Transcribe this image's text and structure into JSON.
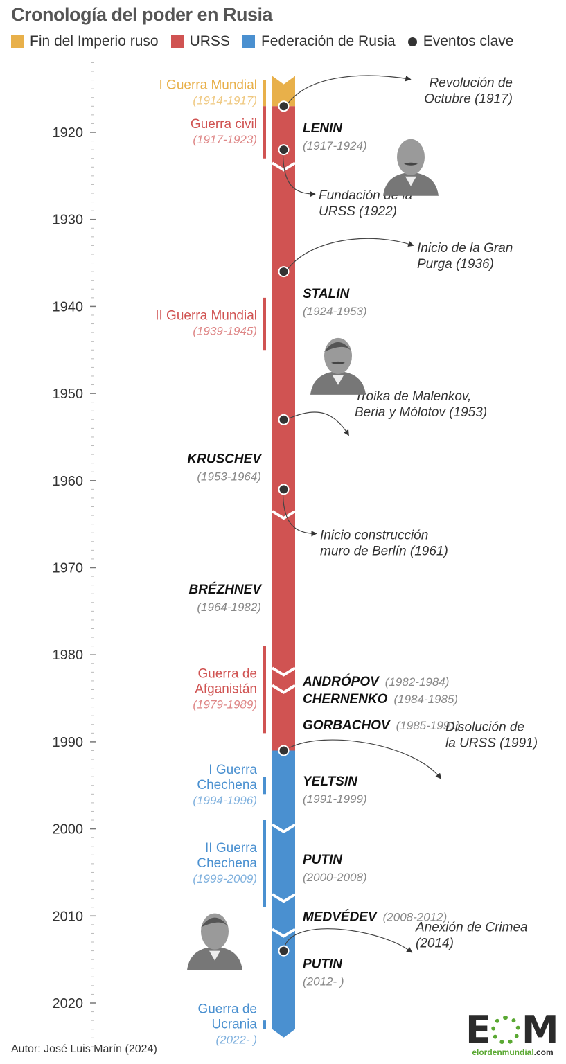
{
  "title": "Cronología del poder en Rusia",
  "legend": [
    {
      "label": "Fin del Imperio ruso",
      "color": "#e8b04a"
    },
    {
      "label": "URSS",
      "color": "#d05352"
    },
    {
      "label": "Federación de Rusia",
      "color": "#4a90d0"
    },
    {
      "label": "Eventos clave",
      "color": "#333333"
    }
  ],
  "axis": {
    "start": 1912,
    "end": 2025,
    "ticks": [
      1920,
      1930,
      1940,
      1950,
      1960,
      1970,
      1980,
      1990,
      2000,
      2010,
      2020
    ]
  },
  "eras": [
    {
      "start": 1914,
      "end": 1917,
      "color": "#e8b04a"
    },
    {
      "start": 1917,
      "end": 1991,
      "color": "#d05352"
    },
    {
      "start": 1991,
      "end": 2023,
      "color": "#4a90d0"
    }
  ],
  "separators": [
    1924,
    1964,
    1982,
    1984,
    2000,
    2008,
    2012
  ],
  "leaders": [
    {
      "name": "LENIN",
      "years": "(1917-1924)",
      "side": "right",
      "layout": "stacked",
      "label_year": 1920
    },
    {
      "name": "STALIN",
      "years": "(1924-1953)",
      "side": "right",
      "layout": "stacked",
      "label_year": 1939
    },
    {
      "name": "KRUSCHEV",
      "years": "(1953-1964)",
      "side": "left",
      "layout": "stacked",
      "label_year": 1958
    },
    {
      "name": "BRÉZHNEV",
      "years": "(1964-1982)",
      "side": "left",
      "layout": "stacked",
      "label_year": 1973
    },
    {
      "name": "ANDRÓPOV",
      "years": "(1982-1984)",
      "side": "right",
      "layout": "inline",
      "label_year": 1983
    },
    {
      "name": "CHERNENKO",
      "years": "(1984-1985)",
      "side": "right",
      "layout": "inline",
      "label_year": 1985
    },
    {
      "name": "GORBACHOV",
      "years": "(1985-1991)",
      "side": "right",
      "layout": "inline",
      "label_year": 1988
    },
    {
      "name": "YELTSIN",
      "years": "(1991-1999)",
      "side": "right",
      "layout": "stacked",
      "label_year": 1995
    },
    {
      "name": "PUTIN",
      "years": "(2000-2008)",
      "side": "right",
      "layout": "stacked",
      "label_year": 2004
    },
    {
      "name": "MEDVÉDEV",
      "years": "(2008-2012)",
      "side": "right",
      "layout": "inline",
      "label_year": 2010
    },
    {
      "name": "PUTIN",
      "years": "(2012- )",
      "side": "right",
      "layout": "stacked",
      "label_year": 2016
    }
  ],
  "wars": [
    {
      "lines": [
        "I Guerra Mundial"
      ],
      "years": "(1914-1917)",
      "start": 1914,
      "end": 1917,
      "color": "#e8b04a"
    },
    {
      "lines": [
        "Guerra civil"
      ],
      "years": "(1917-1923)",
      "start": 1917,
      "end": 1923,
      "color": "#d05352"
    },
    {
      "lines": [
        "II Guerra Mundial"
      ],
      "years": "(1939-1945)",
      "start": 1939,
      "end": 1945,
      "color": "#d05352"
    },
    {
      "lines": [
        "Guerra de",
        "Afganistán"
      ],
      "years": "(1979-1989)",
      "start": 1979,
      "end": 1989,
      "color": "#d05352"
    },
    {
      "lines": [
        "I Guerra",
        "Chechena"
      ],
      "years": "(1994-1996)",
      "start": 1994,
      "end": 1996,
      "color": "#4a90d0"
    },
    {
      "lines": [
        "II Guerra",
        "Chechena"
      ],
      "years": "(1999-2009)",
      "start": 1999,
      "end": 2009,
      "color": "#4a90d0"
    },
    {
      "lines": [
        "Guerra de",
        "Ucrania"
      ],
      "years": "(2022- )",
      "start": 2022,
      "end": 2023,
      "color": "#4a90d0"
    }
  ],
  "events": [
    {
      "year": 1917,
      "lines": [
        "Revolución de",
        "Octubre (1917)"
      ],
      "direction": "up",
      "align": "right"
    },
    {
      "year": 1922,
      "lines": [
        "Fundación de la",
        "URSS (1922)"
      ],
      "direction": "down",
      "align": "left"
    },
    {
      "year": 1936,
      "lines": [
        "Inicio de la Gran",
        "Purga (1936)"
      ],
      "direction": "up",
      "align": "left"
    },
    {
      "year": 1953,
      "lines": [
        "Troika de Malenkov,",
        "Beria y Mólotov (1953)"
      ],
      "direction": "up",
      "align": "left"
    },
    {
      "year": 1961,
      "lines": [
        "Inicio construcción",
        "muro de Berlín (1961)"
      ],
      "direction": "down",
      "align": "left"
    },
    {
      "year": 1991,
      "lines": [
        "Disolución de",
        "la URSS (1991)"
      ],
      "direction": "up",
      "align": "left"
    },
    {
      "year": 2014,
      "lines": [
        "Anexión de Crimea",
        "(2014)"
      ],
      "direction": "up",
      "align": "left"
    }
  ],
  "portraits": [
    {
      "name": "lenin-portrait",
      "year": 1923
    },
    {
      "name": "stalin-portrait",
      "year": 1946
    },
    {
      "name": "putin-portrait",
      "year": 2014
    }
  ],
  "footer": "Autor: José Luis Marín (2024)",
  "logo": {
    "mark_left": "E",
    "mark_right": "M",
    "url_main": "elordenmundial",
    "url_suffix": ".com"
  }
}
